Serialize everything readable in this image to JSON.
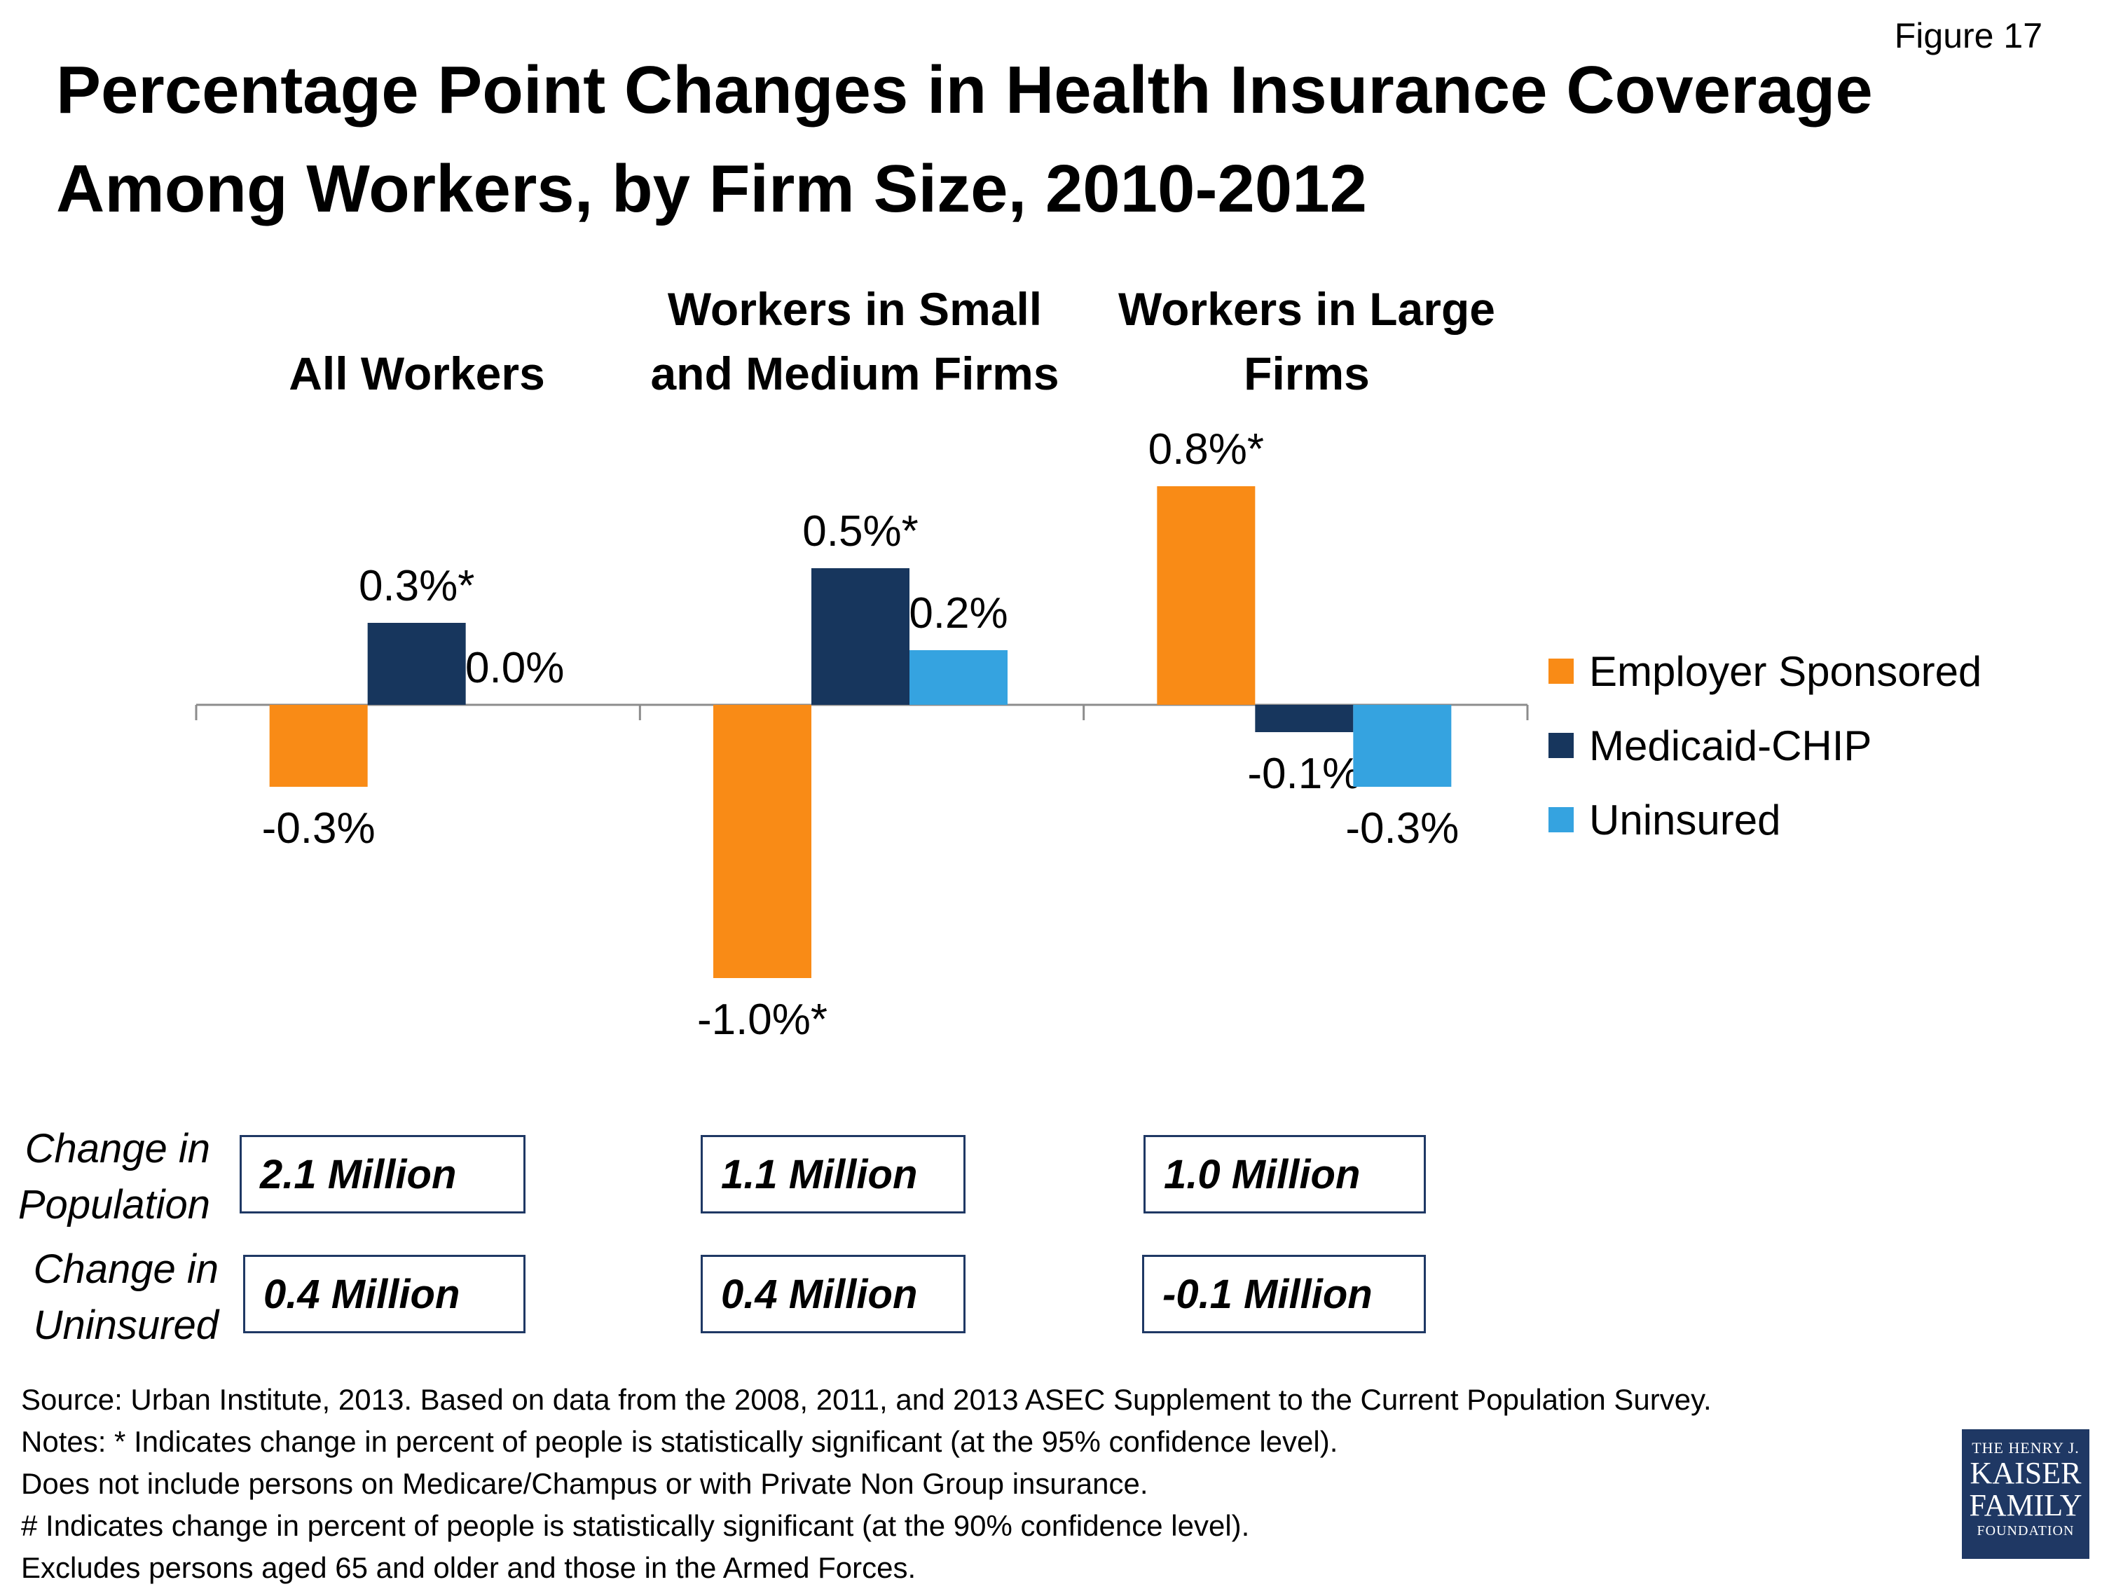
{
  "figure_label": "Figure 17",
  "title_line1": "Percentage Point Changes in Health Insurance Coverage",
  "title_line2": "Among Workers, by Firm Size, 2010-2012",
  "chart_data": {
    "type": "bar",
    "title": "Percentage Point Changes in Health Insurance Coverage Among Workers, by Firm Size, 2010-2012",
    "categories": [
      {
        "line1": "",
        "line2": "All Workers"
      },
      {
        "line1": "Workers in Small",
        "line2": "and Medium Firms"
      },
      {
        "line1": "Workers in Large",
        "line2": "Firms"
      }
    ],
    "series": [
      {
        "name": "Employer Sponsored",
        "color": "#f98b16",
        "values": [
          -0.3,
          -1.0,
          0.8
        ],
        "labels": [
          "-0.3%",
          "-1.0%*",
          "0.8%*"
        ]
      },
      {
        "name": "Medicaid-CHIP",
        "color": "#17365d",
        "values": [
          0.3,
          0.5,
          -0.1
        ],
        "labels": [
          "0.3%*",
          "0.5%*",
          "-0.1%"
        ]
      },
      {
        "name": "Uninsured",
        "color": "#35a3e0",
        "values": [
          0.0,
          0.2,
          -0.3
        ],
        "labels": [
          "0.0%",
          "0.2%",
          "-0.3%"
        ]
      }
    ],
    "ylim": [
      -1.0,
      0.8
    ],
    "grid": false,
    "legend": "right"
  },
  "table": {
    "row1_label_a": "Change in",
    "row1_label_b": "Population",
    "row2_label_a": "Change in",
    "row2_label_b": "Uninsured",
    "population": [
      "2.1 Million",
      "1.1 Million",
      "1.0 Million"
    ],
    "uninsured": [
      "0.4 Million",
      "0.4 Million",
      "-0.1 Million"
    ]
  },
  "notes": [
    "Source: Urban Institute, 2013. Based on data from the 2008, 2011, and 2013 ASEC Supplement to the Current Population Survey.",
    "Notes: * Indicates change in percent of people is statistically significant (at the 95% confidence level).",
    "Does not include persons on Medicare/Champus or with Private Non Group insurance.",
    "# Indicates change in percent of people is statistically significant (at the 90% confidence level).",
    "Excludes persons aged 65 and older and those in the Armed Forces."
  ],
  "logo": {
    "line1": "THE HENRY J.",
    "line2": "KAISER",
    "line3": "FAMILY",
    "line4": "FOUNDATION"
  }
}
